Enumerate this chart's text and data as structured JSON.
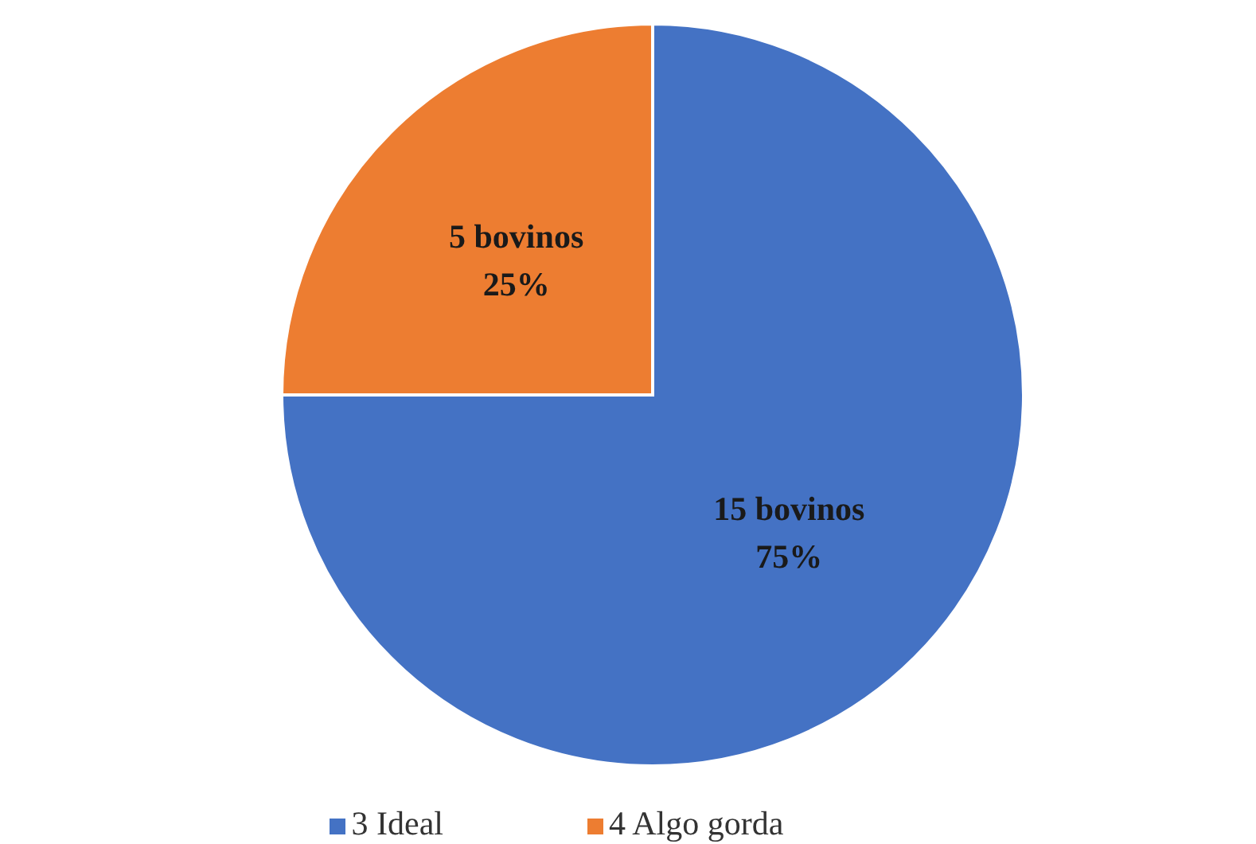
{
  "chart_data": {
    "type": "pie",
    "categories": [
      "3 Ideal",
      "4 Algo gorda"
    ],
    "values": [
      15,
      5
    ],
    "colors": [
      "#4472c4",
      "#ed7d31"
    ],
    "value_labels": [
      "15 bovinos\n75%",
      "5 bovinos\n25%"
    ],
    "legend": "bottom"
  }
}
